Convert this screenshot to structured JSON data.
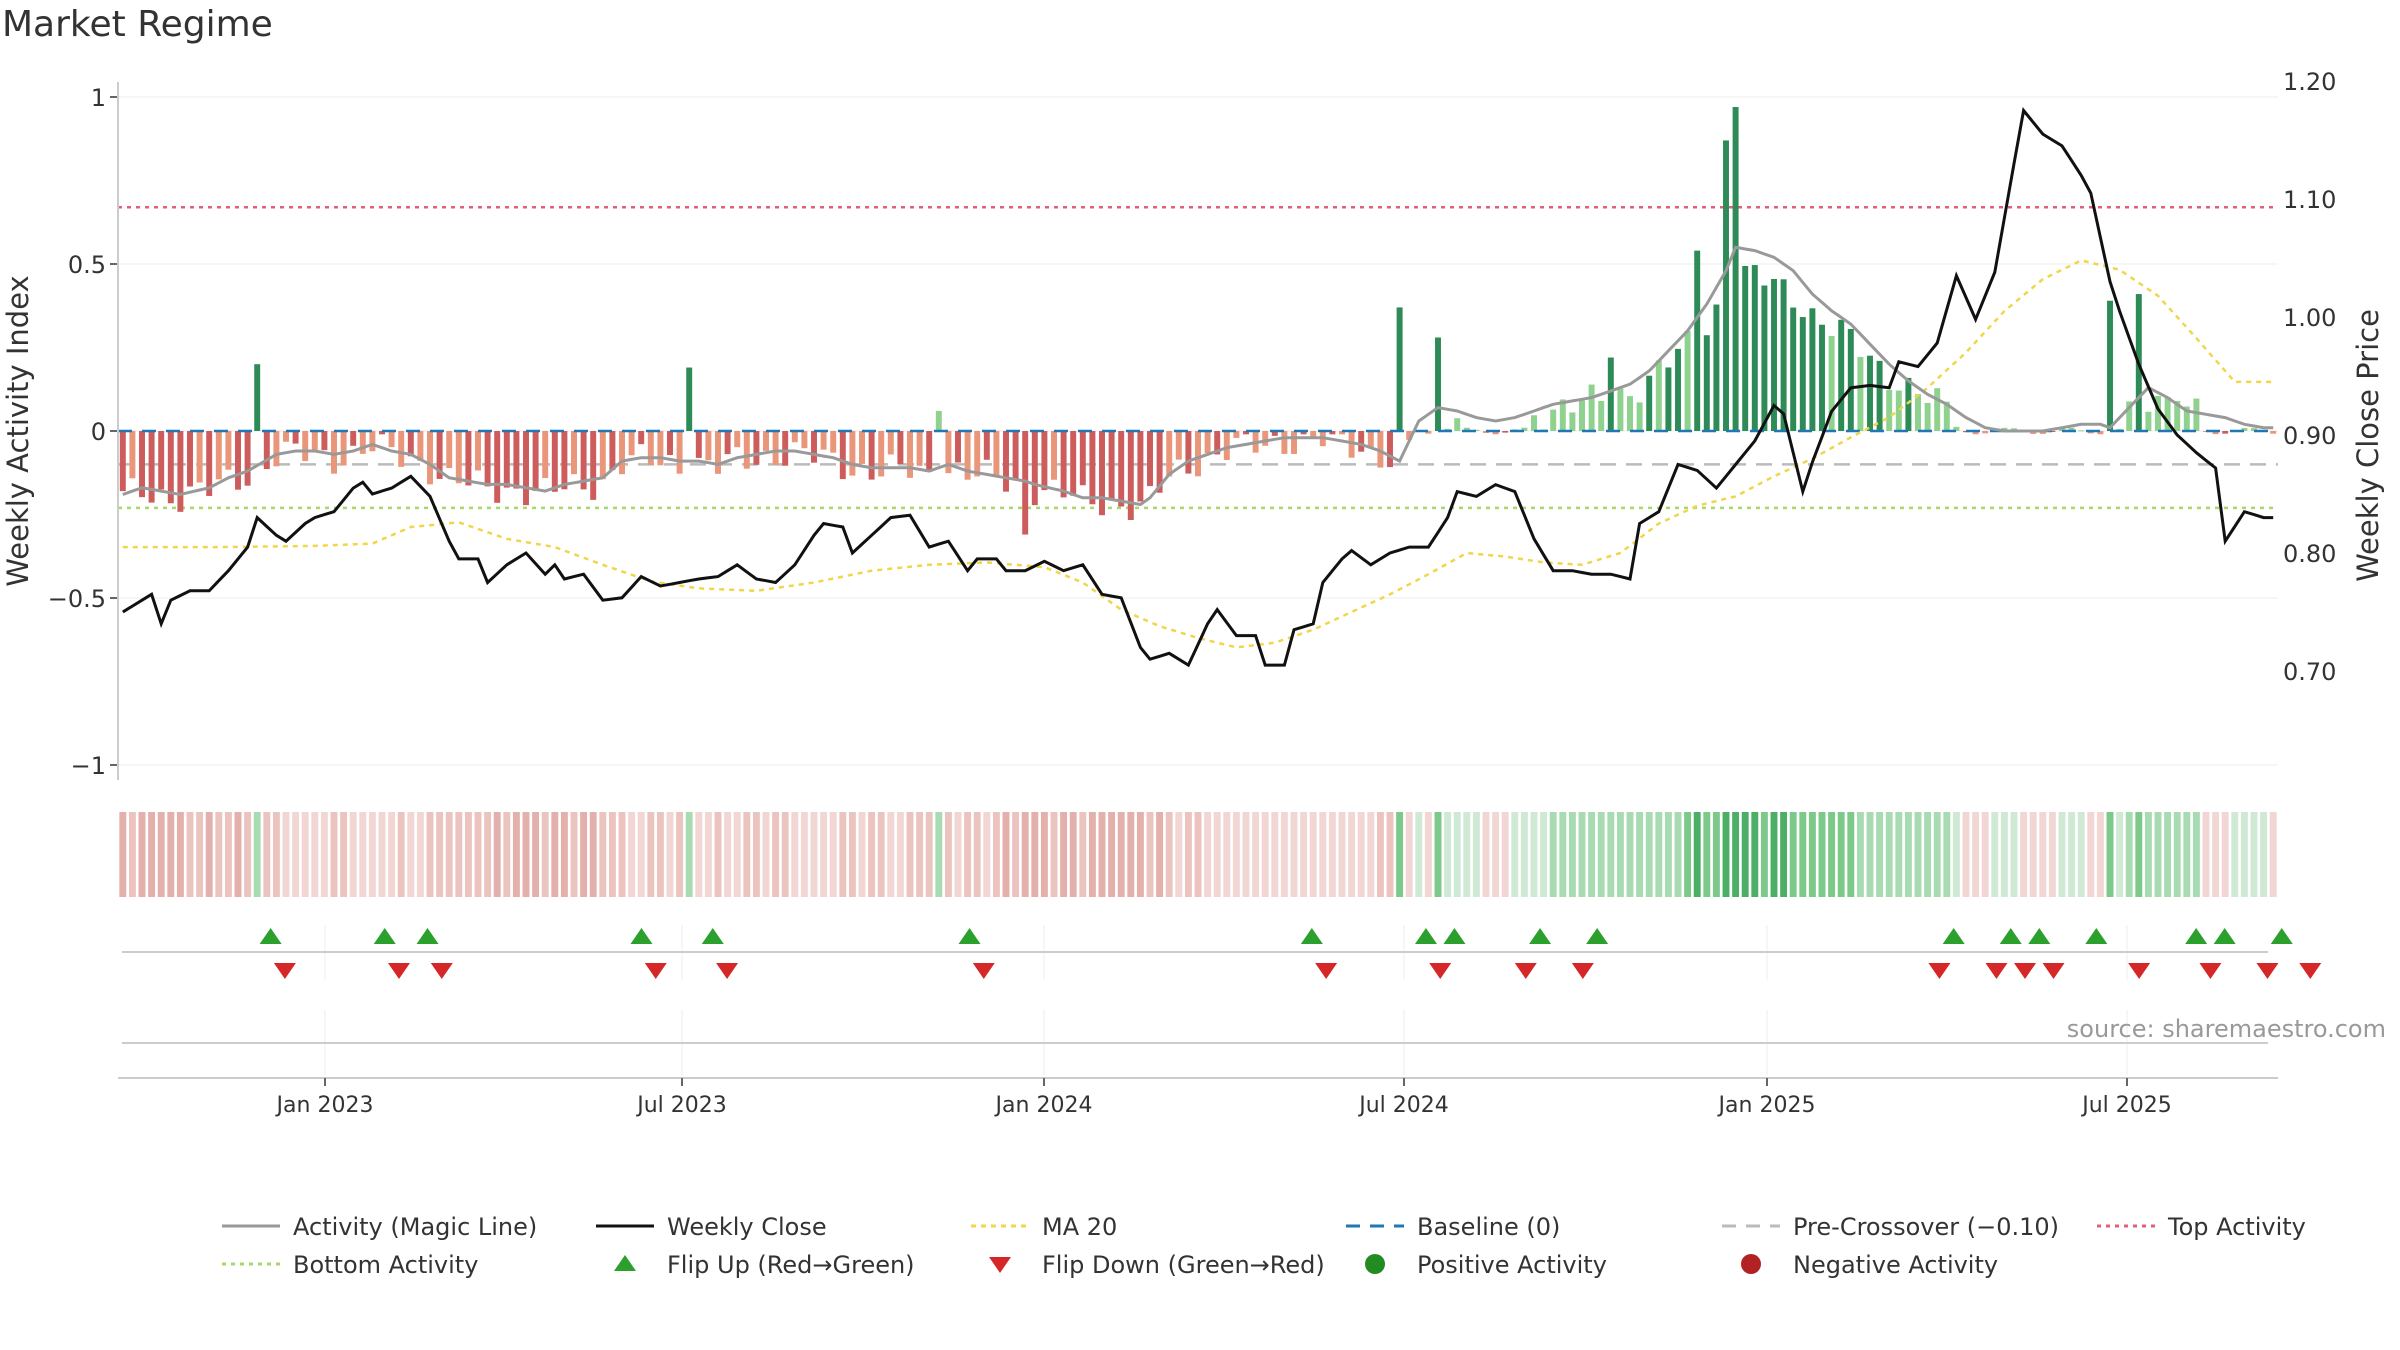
{
  "title": "Market Regime",
  "source": "source: sharemaestro.com",
  "colors": {
    "bar_strong_pos": "#2e8b57",
    "bar_weak_pos": "#8fd18f",
    "bar_strong_neg": "#cd5c5c",
    "bar_weak_neg": "#e9967a",
    "magic_line": "#999999",
    "weekly_close": "#111111",
    "ma20": "#f0d64a",
    "baseline": "#1f77b4",
    "pre_crossover": "#bbbbbb",
    "top_activity": "#e0607a",
    "bottom_activity": "#a6d96a",
    "flip_up": "#2ca02c",
    "flip_down": "#d62728",
    "positive_dot": "#228b22",
    "negative_dot": "#b22222"
  },
  "chart_data": {
    "type": "bar",
    "x_ticks": [
      "Jan 2023",
      "Jul 2023",
      "Jan 2024",
      "Jul 2024",
      "Jan 2025",
      "Jul 2025"
    ],
    "y_left": {
      "label": "Weekly Activity Index",
      "ticks": [
        "1",
        "0.5",
        "0",
        "−0.5",
        "−1"
      ],
      "range": [
        -1,
        1
      ]
    },
    "y_right": {
      "label": "Weekly Close Price",
      "ticks": [
        "1.20",
        "1.10",
        "1.00",
        "0.90",
        "0.80",
        "0.70"
      ],
      "range": [
        0.65,
        1.2
      ]
    },
    "reference_lines": {
      "top_activity": 0.67,
      "bottom_activity": -0.23,
      "pre_crossover": -0.1,
      "baseline": 0
    },
    "activity_keys": [
      [
        0,
        -0.19
      ],
      [
        2,
        -0.17
      ],
      [
        4,
        -0.18
      ],
      [
        6,
        -0.19
      ],
      [
        9,
        -0.17
      ],
      [
        11,
        -0.14
      ],
      [
        13,
        -0.12
      ],
      [
        16,
        -0.07
      ],
      [
        18,
        -0.06
      ],
      [
        20,
        -0.06
      ],
      [
        22,
        -0.07
      ],
      [
        24,
        -0.06
      ],
      [
        26,
        -0.04
      ],
      [
        28,
        -0.06
      ],
      [
        30,
        -0.07
      ],
      [
        32,
        -0.1
      ],
      [
        34,
        -0.14
      ],
      [
        36,
        -0.15
      ],
      [
        38,
        -0.16
      ],
      [
        40,
        -0.16
      ],
      [
        42,
        -0.17
      ],
      [
        44,
        -0.18
      ],
      [
        46,
        -0.16
      ],
      [
        48,
        -0.15
      ],
      [
        50,
        -0.14
      ],
      [
        52,
        -0.09
      ],
      [
        54,
        -0.08
      ],
      [
        56,
        -0.08
      ],
      [
        58,
        -0.09
      ],
      [
        60,
        -0.09
      ],
      [
        62,
        -0.1
      ],
      [
        64,
        -0.08
      ],
      [
        66,
        -0.07
      ],
      [
        68,
        -0.06
      ],
      [
        70,
        -0.06
      ],
      [
        72,
        -0.07
      ],
      [
        74,
        -0.08
      ],
      [
        76,
        -0.1
      ],
      [
        78,
        -0.11
      ],
      [
        80,
        -0.11
      ],
      [
        82,
        -0.11
      ],
      [
        84,
        -0.12
      ],
      [
        86,
        -0.1
      ],
      [
        88,
        -0.12
      ],
      [
        90,
        -0.13
      ],
      [
        92,
        -0.14
      ],
      [
        94,
        -0.15
      ],
      [
        95,
        -0.16
      ],
      [
        98,
        -0.18
      ],
      [
        100,
        -0.2
      ],
      [
        102,
        -0.2
      ],
      [
        104,
        -0.21
      ],
      [
        106,
        -0.22
      ],
      [
        107,
        -0.2
      ],
      [
        109,
        -0.13
      ],
      [
        111,
        -0.09
      ],
      [
        113,
        -0.07
      ],
      [
        115,
        -0.05
      ],
      [
        117,
        -0.04
      ],
      [
        119,
        -0.03
      ],
      [
        121,
        -0.02
      ],
      [
        123,
        -0.02
      ],
      [
        125,
        -0.02
      ],
      [
        127,
        -0.03
      ],
      [
        129,
        -0.04
      ],
      [
        131,
        -0.06
      ],
      [
        133,
        -0.09
      ],
      [
        135,
        0.03
      ],
      [
        137,
        0.07
      ],
      [
        139,
        0.06
      ],
      [
        141,
        0.04
      ],
      [
        143,
        0.03
      ],
      [
        145,
        0.04
      ],
      [
        147,
        0.06
      ],
      [
        149,
        0.08
      ],
      [
        151,
        0.09
      ],
      [
        153,
        0.1
      ],
      [
        155,
        0.12
      ],
      [
        157,
        0.14
      ],
      [
        159,
        0.18
      ],
      [
        161,
        0.24
      ],
      [
        163,
        0.3
      ],
      [
        165,
        0.38
      ],
      [
        167,
        0.48
      ],
      [
        168,
        0.55
      ],
      [
        170,
        0.54
      ],
      [
        172,
        0.52
      ],
      [
        174,
        0.48
      ],
      [
        176,
        0.41
      ],
      [
        178,
        0.36
      ],
      [
        180,
        0.32
      ],
      [
        182,
        0.26
      ],
      [
        184,
        0.2
      ],
      [
        186,
        0.15
      ],
      [
        188,
        0.11
      ],
      [
        190,
        0.08
      ],
      [
        192,
        0.04
      ],
      [
        194,
        0.01
      ],
      [
        196,
        0.0
      ],
      [
        198,
        0.0
      ],
      [
        200,
        0.0
      ],
      [
        202,
        0.01
      ],
      [
        204,
        0.02
      ],
      [
        206,
        0.02
      ],
      [
        207,
        0.01
      ],
      [
        209,
        0.07
      ],
      [
        211,
        0.13
      ],
      [
        213,
        0.1
      ],
      [
        215,
        0.06
      ],
      [
        217,
        0.05
      ],
      [
        219,
        0.04
      ],
      [
        221,
        0.02
      ],
      [
        223,
        0.01
      ]
    ],
    "activity_spikes": {
      "14": 0.2,
      "59": 0.19,
      "85": 0.06,
      "94": -0.31,
      "133": 0.37,
      "137": 0.28,
      "155": 0.22,
      "164": 0.54,
      "167": 0.87,
      "168": 0.97,
      "207": 0.39,
      "210": 0.41,
      "214": 0.09
    },
    "close_keys": [
      [
        0,
        0.75
      ],
      [
        3,
        0.765
      ],
      [
        4,
        0.74
      ],
      [
        5,
        0.76
      ],
      [
        7,
        0.768
      ],
      [
        9,
        0.768
      ],
      [
        11,
        0.785
      ],
      [
        13,
        0.805
      ],
      [
        14,
        0.83
      ],
      [
        16,
        0.815
      ],
      [
        17,
        0.81
      ],
      [
        19,
        0.825
      ],
      [
        20,
        0.83
      ],
      [
        22,
        0.835
      ],
      [
        24,
        0.855
      ],
      [
        25,
        0.86
      ],
      [
        26,
        0.85
      ],
      [
        28,
        0.855
      ],
      [
        30,
        0.865
      ],
      [
        32,
        0.848
      ],
      [
        34,
        0.81
      ],
      [
        35,
        0.795
      ],
      [
        37,
        0.795
      ],
      [
        38,
        0.775
      ],
      [
        40,
        0.79
      ],
      [
        42,
        0.8
      ],
      [
        44,
        0.782
      ],
      [
        45,
        0.79
      ],
      [
        46,
        0.778
      ],
      [
        48,
        0.782
      ],
      [
        50,
        0.76
      ],
      [
        52,
        0.762
      ],
      [
        54,
        0.78
      ],
      [
        56,
        0.772
      ],
      [
        58,
        0.775
      ],
      [
        60,
        0.778
      ],
      [
        62,
        0.78
      ],
      [
        64,
        0.79
      ],
      [
        66,
        0.778
      ],
      [
        68,
        0.775
      ],
      [
        70,
        0.79
      ],
      [
        72,
        0.815
      ],
      [
        73,
        0.825
      ],
      [
        75,
        0.822
      ],
      [
        76,
        0.8
      ],
      [
        78,
        0.815
      ],
      [
        80,
        0.83
      ],
      [
        82,
        0.832
      ],
      [
        84,
        0.805
      ],
      [
        86,
        0.81
      ],
      [
        88,
        0.785
      ],
      [
        89,
        0.795
      ],
      [
        91,
        0.795
      ],
      [
        92,
        0.785
      ],
      [
        94,
        0.785
      ],
      [
        96,
        0.793
      ],
      [
        98,
        0.785
      ],
      [
        100,
        0.79
      ],
      [
        102,
        0.765
      ],
      [
        104,
        0.762
      ],
      [
        106,
        0.72
      ],
      [
        107,
        0.71
      ],
      [
        109,
        0.715
      ],
      [
        111,
        0.705
      ],
      [
        113,
        0.74
      ],
      [
        114,
        0.752
      ],
      [
        116,
        0.73
      ],
      [
        118,
        0.73
      ],
      [
        119,
        0.705
      ],
      [
        121,
        0.705
      ],
      [
        122,
        0.735
      ],
      [
        124,
        0.74
      ],
      [
        125,
        0.775
      ],
      [
        127,
        0.795
      ],
      [
        128,
        0.802
      ],
      [
        130,
        0.79
      ],
      [
        132,
        0.8
      ],
      [
        134,
        0.805
      ],
      [
        136,
        0.805
      ],
      [
        138,
        0.83
      ],
      [
        139,
        0.852
      ],
      [
        141,
        0.848
      ],
      [
        143,
        0.858
      ],
      [
        145,
        0.852
      ],
      [
        147,
        0.812
      ],
      [
        149,
        0.785
      ],
      [
        151,
        0.785
      ],
      [
        153,
        0.782
      ],
      [
        155,
        0.782
      ],
      [
        157,
        0.778
      ],
      [
        158,
        0.825
      ],
      [
        160,
        0.835
      ],
      [
        162,
        0.875
      ],
      [
        164,
        0.87
      ],
      [
        166,
        0.855
      ],
      [
        168,
        0.875
      ],
      [
        170,
        0.895
      ],
      [
        172,
        0.925
      ],
      [
        173,
        0.918
      ],
      [
        175,
        0.852
      ],
      [
        176,
        0.877
      ],
      [
        178,
        0.92
      ],
      [
        180,
        0.94
      ],
      [
        182,
        0.942
      ],
      [
        184,
        0.94
      ],
      [
        185,
        0.962
      ],
      [
        187,
        0.958
      ],
      [
        189,
        0.978
      ],
      [
        191,
        1.035
      ],
      [
        193,
        0.998
      ],
      [
        195,
        1.038
      ],
      [
        197,
        1.13
      ],
      [
        198,
        1.175
      ],
      [
        200,
        1.155
      ],
      [
        202,
        1.145
      ],
      [
        204,
        1.12
      ],
      [
        205,
        1.105
      ],
      [
        207,
        1.03
      ],
      [
        208,
        1.005
      ],
      [
        210,
        0.96
      ],
      [
        212,
        0.922
      ],
      [
        214,
        0.9
      ],
      [
        216,
        0.885
      ],
      [
        218,
        0.872
      ],
      [
        219,
        0.81
      ],
      [
        221,
        0.835
      ],
      [
        223,
        0.83
      ]
    ],
    "ma20_keys": [
      [
        0,
        0.805
      ],
      [
        10,
        0.805
      ],
      [
        20,
        0.806
      ],
      [
        26,
        0.808
      ],
      [
        30,
        0.822
      ],
      [
        35,
        0.826
      ],
      [
        40,
        0.812
      ],
      [
        45,
        0.805
      ],
      [
        50,
        0.79
      ],
      [
        55,
        0.776
      ],
      [
        60,
        0.77
      ],
      [
        66,
        0.768
      ],
      [
        72,
        0.775
      ],
      [
        78,
        0.785
      ],
      [
        84,
        0.79
      ],
      [
        90,
        0.792
      ],
      [
        96,
        0.788
      ],
      [
        100,
        0.775
      ],
      [
        104,
        0.752
      ],
      [
        108,
        0.738
      ],
      [
        112,
        0.728
      ],
      [
        116,
        0.72
      ],
      [
        120,
        0.724
      ],
      [
        124,
        0.735
      ],
      [
        128,
        0.75
      ],
      [
        132,
        0.765
      ],
      [
        136,
        0.782
      ],
      [
        140,
        0.8
      ],
      [
        144,
        0.797
      ],
      [
        148,
        0.792
      ],
      [
        152,
        0.79
      ],
      [
        156,
        0.8
      ],
      [
        160,
        0.825
      ],
      [
        164,
        0.84
      ],
      [
        168,
        0.848
      ],
      [
        172,
        0.865
      ],
      [
        176,
        0.88
      ],
      [
        180,
        0.898
      ],
      [
        184,
        0.915
      ],
      [
        188,
        0.94
      ],
      [
        192,
        0.97
      ],
      [
        196,
        1.005
      ],
      [
        200,
        1.032
      ],
      [
        204,
        1.048
      ],
      [
        208,
        1.04
      ],
      [
        212,
        1.018
      ],
      [
        216,
        0.982
      ],
      [
        220,
        0.945
      ]
    ],
    "flip_up_weeks": [
      10,
      18,
      21,
      36,
      41,
      59,
      83,
      91,
      93,
      99,
      103,
      128,
      132,
      134,
      138,
      145,
      147,
      151
    ],
    "flip_down_weeks": [
      11,
      19,
      22,
      37,
      42,
      60,
      84,
      92,
      98,
      102,
      127,
      131,
      133,
      135,
      141,
      146,
      150,
      153
    ],
    "legend": [
      "Activity (Magic Line)",
      "Weekly Close",
      "MA 20",
      "Baseline (0)",
      "Pre-Crossover (−0.10)",
      "Top Activity",
      "Bottom Activity",
      "Flip Up (Red→Green)",
      "Flip Down (Green→Red)",
      "Positive Activity",
      "Negative Activity"
    ]
  }
}
